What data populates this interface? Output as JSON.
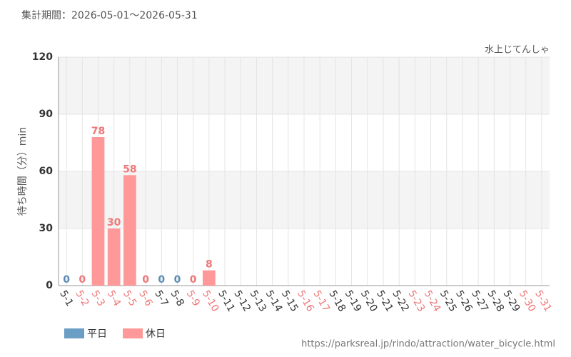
{
  "header": "集計期間：2026-05-01～2026-05-31",
  "footer": "https://parksreal.jp/rindo/attraction/water_bicycle.html",
  "chart_data": {
    "type": "bar",
    "subtitle": "水上じてんしゃ",
    "y_label": "待ち時間（分）min",
    "categories": [
      "5-1",
      "5-2",
      "5-3",
      "5-4",
      "5-5",
      "5-6",
      "5-7",
      "5-8",
      "5-9",
      "5-10",
      "5-11",
      "5-12",
      "5-13",
      "5-14",
      "5-15",
      "5-16",
      "5-17",
      "5-18",
      "5-19",
      "5-20",
      "5-21",
      "5-22",
      "5-23",
      "5-24",
      "5-25",
      "5-26",
      "5-27",
      "5-28",
      "5-29",
      "5-30",
      "5-31"
    ],
    "category_colors": [
      "#333333",
      "#ee7777",
      "#ee7777",
      "#ee7777",
      "#ee7777",
      "#ee7777",
      "#333333",
      "#333333",
      "#ee7777",
      "#ee7777",
      "#333333",
      "#333333",
      "#333333",
      "#333333",
      "#333333",
      "#ee7777",
      "#ee7777",
      "#333333",
      "#333333",
      "#333333",
      "#333333",
      "#333333",
      "#ee7777",
      "#ee7777",
      "#333333",
      "#333333",
      "#333333",
      "#333333",
      "#333333",
      "#ee7777",
      "#ee7777"
    ],
    "series": [
      {
        "name": "平日",
        "color": "#6a9ec5",
        "label_color": "#5a8ab5",
        "values": [
          0,
          null,
          null,
          null,
          null,
          null,
          0,
          0,
          null,
          null,
          null,
          null,
          null,
          null,
          null,
          null,
          null,
          null,
          null,
          null,
          null,
          null,
          null,
          null,
          null,
          null,
          null,
          null,
          null,
          null,
          null
        ]
      },
      {
        "name": "休日",
        "color": "#ff9999",
        "label_color": "#ee7777",
        "values": [
          null,
          0,
          78,
          30,
          58,
          0,
          null,
          null,
          0,
          8,
          null,
          null,
          null,
          null,
          null,
          null,
          null,
          null,
          null,
          null,
          null,
          null,
          null,
          null,
          null,
          null,
          null,
          null,
          null,
          null,
          null
        ]
      }
    ],
    "ylim": [
      0,
      120
    ],
    "yticks": [
      0,
      30,
      60,
      90,
      120
    ],
    "grid": true,
    "band_color": "#f4f4f4",
    "legend": "bottom-left"
  }
}
